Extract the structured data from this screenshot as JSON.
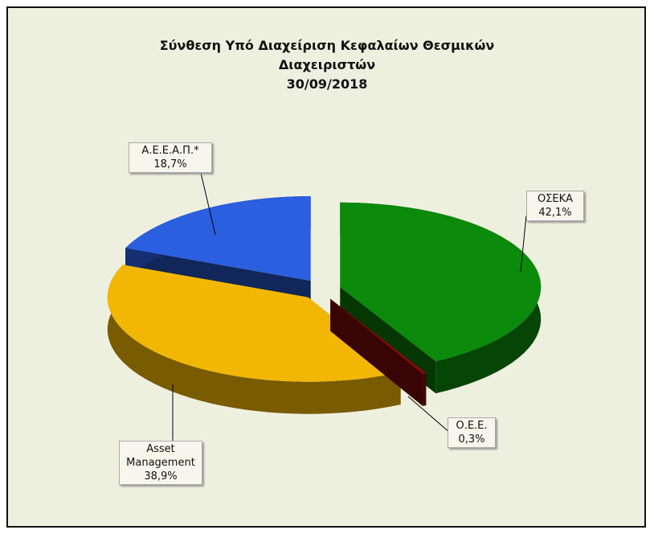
{
  "chart_data": {
    "type": "pie",
    "title": [
      "Σύνθεση Υπό Διαχείριση  Κεφαλαίων Θεσμικών",
      "Διαχειριστών"
    ],
    "subtitle": "30/09/2018",
    "categories": [
      "ΟΣΕΚΑ",
      "Ο.Ε.Ε.",
      "Asset Management",
      "Α.Ε.Ε.Α.Π.*"
    ],
    "values": [
      42.1,
      0.3,
      38.9,
      18.7
    ],
    "value_labels": [
      "42,1%",
      "0,3%",
      "38,9%",
      "18,7%"
    ],
    "colors": [
      "#0b8a0b",
      "#8c0a0a",
      "#f2b705",
      "#2b5fe0"
    ]
  }
}
